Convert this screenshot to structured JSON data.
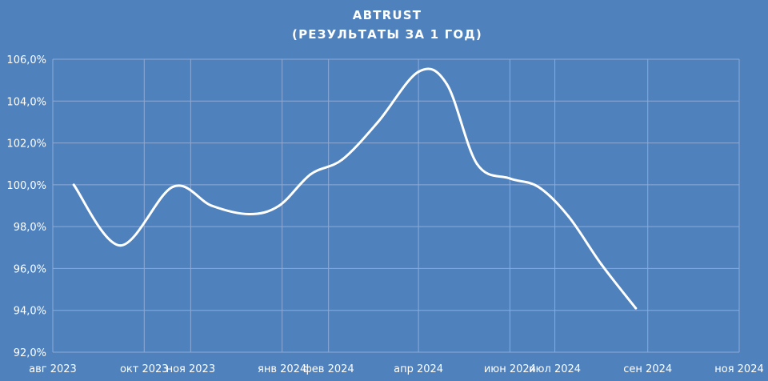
{
  "chart_data": {
    "type": "line",
    "title": "ABTRUST",
    "subtitle": "(РЕЗУЛЬТАТЫ ЗА 1 ГОД)",
    "xlabel": "",
    "ylabel": "",
    "ylim": [
      92,
      106
    ],
    "y_ticks": [
      "92,0%",
      "94,0%",
      "96,0%",
      "98,0%",
      "100,0%",
      "102,0%",
      "104,0%",
      "106,0%"
    ],
    "x_ticks": [
      "авг 2023",
      "окт 2023",
      "ноя 2023",
      "янв 2024",
      "фев 2024",
      "апр 2024",
      "июн 2024",
      "июл 2024",
      "сен 2024",
      "ноя 2024"
    ],
    "x_tick_dates": [
      "2023-08-01",
      "2023-10-01",
      "2023-11-01",
      "2024-01-01",
      "2024-02-01",
      "2024-04-01",
      "2024-06-01",
      "2024-07-01",
      "2024-09-01",
      "2024-11-01"
    ],
    "grid": true,
    "series": [
      {
        "x": [
          "2023-08-15",
          "2023-09-15",
          "2023-10-20",
          "2023-11-15",
          "2023-12-10",
          "2023-12-30",
          "2024-01-20",
          "2024-02-10",
          "2024-03-05",
          "2024-04-01",
          "2024-04-20",
          "2024-05-10",
          "2024-06-01",
          "2024-06-20",
          "2024-07-10",
          "2024-08-01",
          "2024-08-24"
        ],
        "values": [
          100.0,
          97.1,
          99.9,
          99.0,
          98.6,
          99.0,
          100.5,
          101.2,
          103.0,
          105.4,
          104.8,
          101.0,
          100.3,
          99.9,
          98.5,
          96.2,
          94.1
        ]
      }
    ]
  }
}
